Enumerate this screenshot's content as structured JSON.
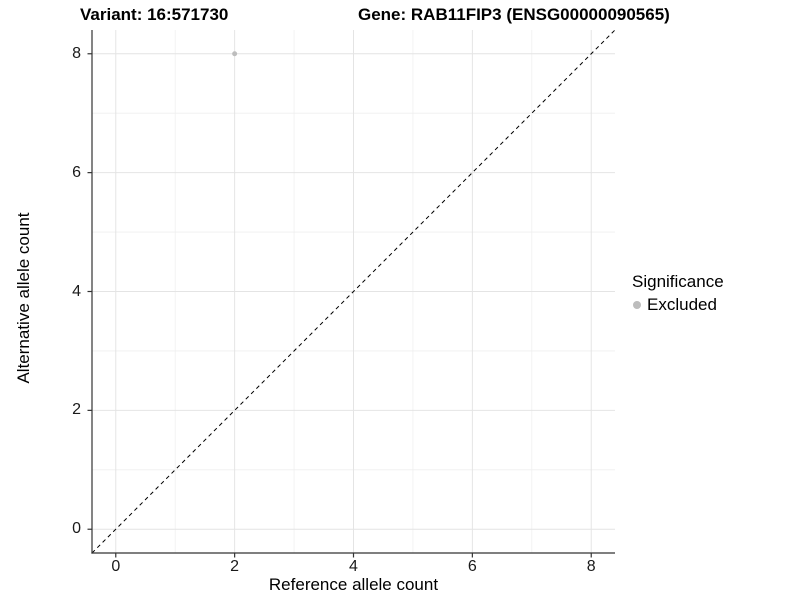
{
  "titles": {
    "variant": "Variant: 16:571730",
    "gene": "Gene: RAB11FIP3 (ENSG00000090565)"
  },
  "axes": {
    "xlabel": "Reference allele count",
    "ylabel": "Alternative allele count"
  },
  "legend": {
    "title": "Significance",
    "items": [
      {
        "label": "Excluded",
        "marker": "circle-icon",
        "color": "#bdbdbd"
      }
    ]
  },
  "colors": {
    "background": "#ffffff",
    "grid_major": "#e4e4e4",
    "grid_minor": "#efefef",
    "axis_line": "#333333",
    "tick_text": "#1a1a1a",
    "point": "#bdbdbd",
    "reference_line": "#000000"
  },
  "chart_data": {
    "type": "scatter",
    "title_left": "Variant: 16:571730",
    "title_right": "Gene: RAB11FIP3 (ENSG00000090565)",
    "xlabel": "Reference allele count",
    "ylabel": "Alternative allele count",
    "xlim": [
      -0.4,
      8.4
    ],
    "ylim": [
      -0.4,
      8.4
    ],
    "x_ticks": [
      0,
      2,
      4,
      6,
      8
    ],
    "y_ticks": [
      0,
      2,
      4,
      6,
      8
    ],
    "x_minor_ticks": [
      1,
      3,
      5,
      7
    ],
    "y_minor_ticks": [
      1,
      3,
      5,
      7
    ],
    "grid": true,
    "legend_position": "right",
    "series": [
      {
        "name": "Excluded",
        "color": "#bdbdbd",
        "points": [
          {
            "x": 2,
            "y": 8
          }
        ]
      }
    ],
    "reference_line": {
      "kind": "identity",
      "style": "dashed",
      "color": "#000000",
      "from": [
        -0.4,
        -0.4
      ],
      "to": [
        8.4,
        8.4
      ]
    }
  }
}
